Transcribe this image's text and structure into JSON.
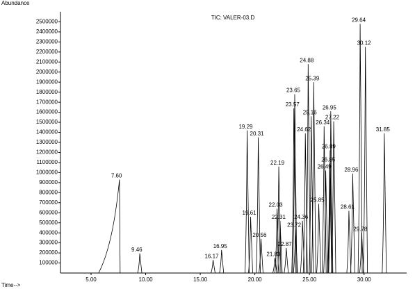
{
  "chart_data": {
    "type": "peaks",
    "title": "TIC: VALER-03.D",
    "y_label": "Abundance",
    "x_label": "Time-->",
    "color": "#000000",
    "x": [
      {
        "value": 7.6,
        "label": "7.60"
      },
      {
        "value": 9.46,
        "label": "9.46"
      },
      {
        "value": 16.17,
        "label": "16.17"
      },
      {
        "value": 16.95,
        "label": "16.95"
      },
      {
        "value": 19.29,
        "label": "19.29"
      },
      {
        "value": 19.61,
        "label": "19.61"
      },
      {
        "value": 20.31,
        "label": "20.31"
      },
      {
        "value": 20.56,
        "label": "20.56"
      },
      {
        "value": 21.83,
        "label": "21.83"
      },
      {
        "value": 22.03,
        "label": "22.03"
      },
      {
        "value": 22.19,
        "label": "22.19"
      },
      {
        "value": 22.31,
        "label": "22.31"
      },
      {
        "value": 22.87,
        "label": "22.87"
      },
      {
        "value": 23.57,
        "label": "23.57"
      },
      {
        "value": 23.65,
        "label": "23.65"
      },
      {
        "value": 23.72,
        "label": "23.72"
      },
      {
        "value": 24.36,
        "label": "24.36"
      },
      {
        "value": 24.62,
        "label": "24.62"
      },
      {
        "value": 24.88,
        "label": "24.88"
      },
      {
        "value": 25.16,
        "label": "25.16"
      },
      {
        "value": 25.39,
        "label": "25.39"
      },
      {
        "value": 25.85,
        "label": "25.85"
      },
      {
        "value": 26.34,
        "label": "26.34"
      },
      {
        "value": 26.49,
        "label": "26.49"
      },
      {
        "value": 26.85,
        "label": "26.85"
      },
      {
        "value": 26.89,
        "label": "26.89"
      },
      {
        "value": 26.95,
        "label": "26.95"
      },
      {
        "value": 27.22,
        "label": "27.22"
      },
      {
        "value": 28.61,
        "label": "28.61"
      },
      {
        "value": 28.96,
        "label": "28.96"
      },
      {
        "value": 29.64,
        "label": "29.64"
      },
      {
        "value": 29.78,
        "label": "29.78"
      },
      {
        "value": 30.12,
        "label": "30.12"
      },
      {
        "value": 31.85,
        "label": "31.85"
      }
    ],
    "values": [
      930000,
      195000,
      130000,
      230000,
      1420000,
      560000,
      1350000,
      340000,
      150000,
      640000,
      1060000,
      520000,
      250000,
      1640000,
      1780000,
      440000,
      520000,
      1390000,
      2080000,
      1560000,
      1900000,
      690000,
      1460000,
      1020000,
      1090000,
      1220000,
      1610000,
      1510000,
      620000,
      990000,
      2480000,
      400000,
      2250000,
      1390000
    ],
    "xlim": [
      2.2,
      33.9
    ],
    "xticks": [
      {
        "value": 5,
        "label": "5.00"
      },
      {
        "value": 10,
        "label": "10.00"
      },
      {
        "value": 15,
        "label": "15.00"
      },
      {
        "value": 20,
        "label": "20.00"
      },
      {
        "value": 25,
        "label": "25.00"
      },
      {
        "value": 30,
        "label": "30.00"
      }
    ],
    "ylim": [
      0,
      2600000
    ],
    "yticks": [
      100000,
      200000,
      300000,
      400000,
      500000,
      600000,
      700000,
      800000,
      900000,
      1000000,
      1100000,
      1200000,
      1300000,
      1400000,
      1500000,
      1600000,
      1700000,
      1800000,
      1900000,
      2000000,
      2100000,
      2200000,
      2300000,
      2400000,
      2500000
    ]
  }
}
